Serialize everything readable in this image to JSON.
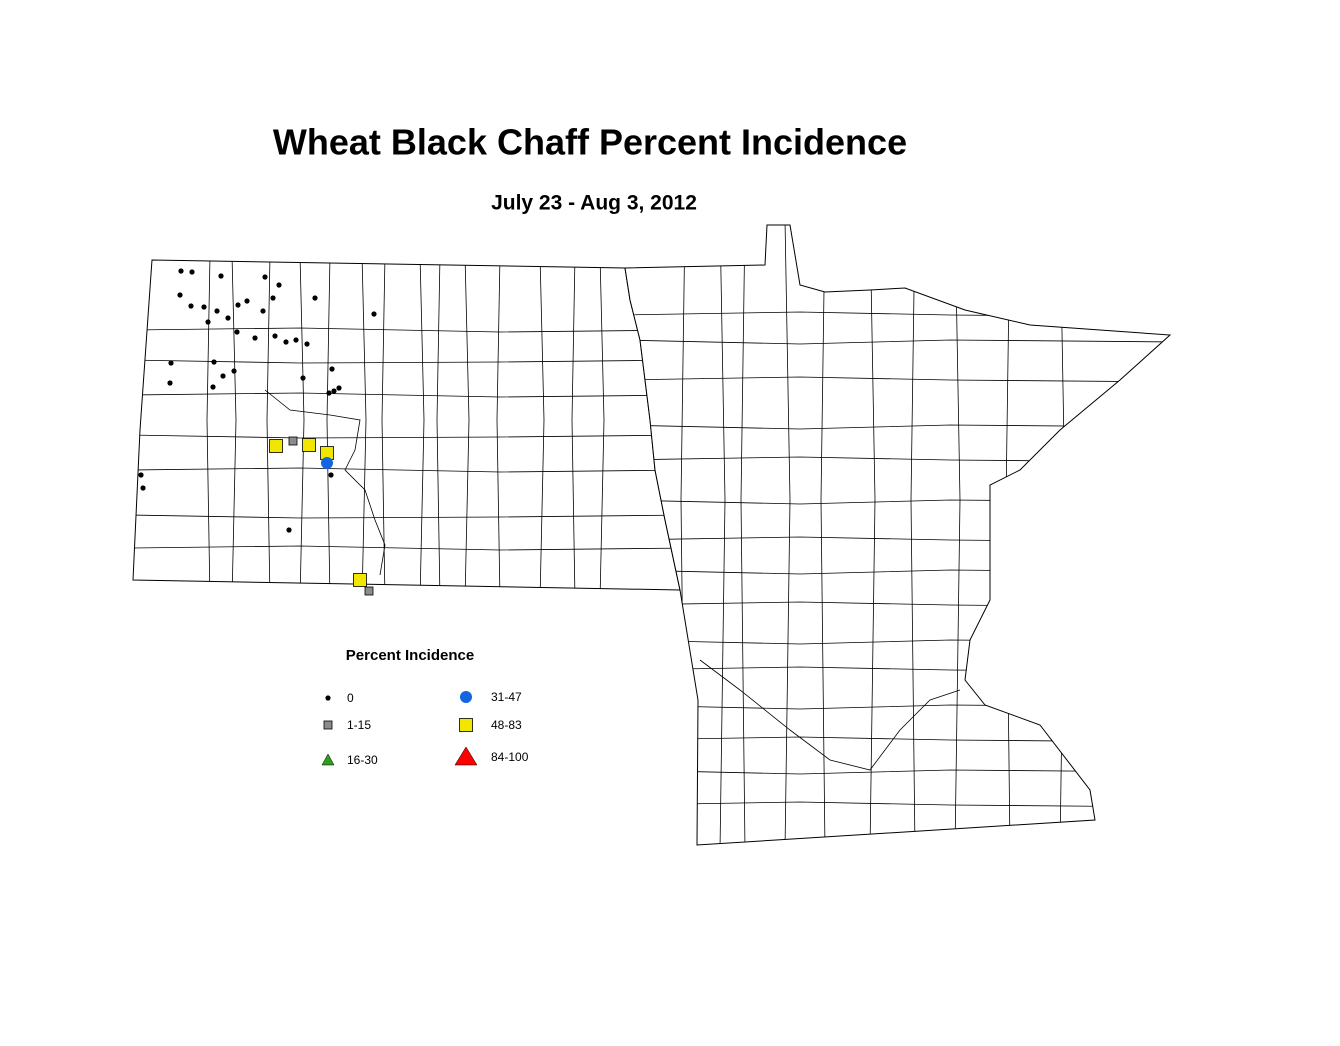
{
  "title": "Wheat Black Chaff Percent Incidence",
  "subtitle": "July 23 - Aug 3, 2012",
  "legend": {
    "title": "Percent Incidence",
    "items": [
      {
        "label": "0",
        "shape": "dot",
        "color": "#000000"
      },
      {
        "label": "1-15",
        "shape": "small-square",
        "color": "#8c8c8c"
      },
      {
        "label": "16-30",
        "shape": "triangle",
        "color": "#2e9e1e"
      },
      {
        "label": "31-47",
        "shape": "circle",
        "color": "#1565e0"
      },
      {
        "label": "48-83",
        "shape": "square",
        "color": "#f0e600"
      },
      {
        "label": "84-100",
        "shape": "big-triangle",
        "color": "#ff0000"
      }
    ]
  }
}
